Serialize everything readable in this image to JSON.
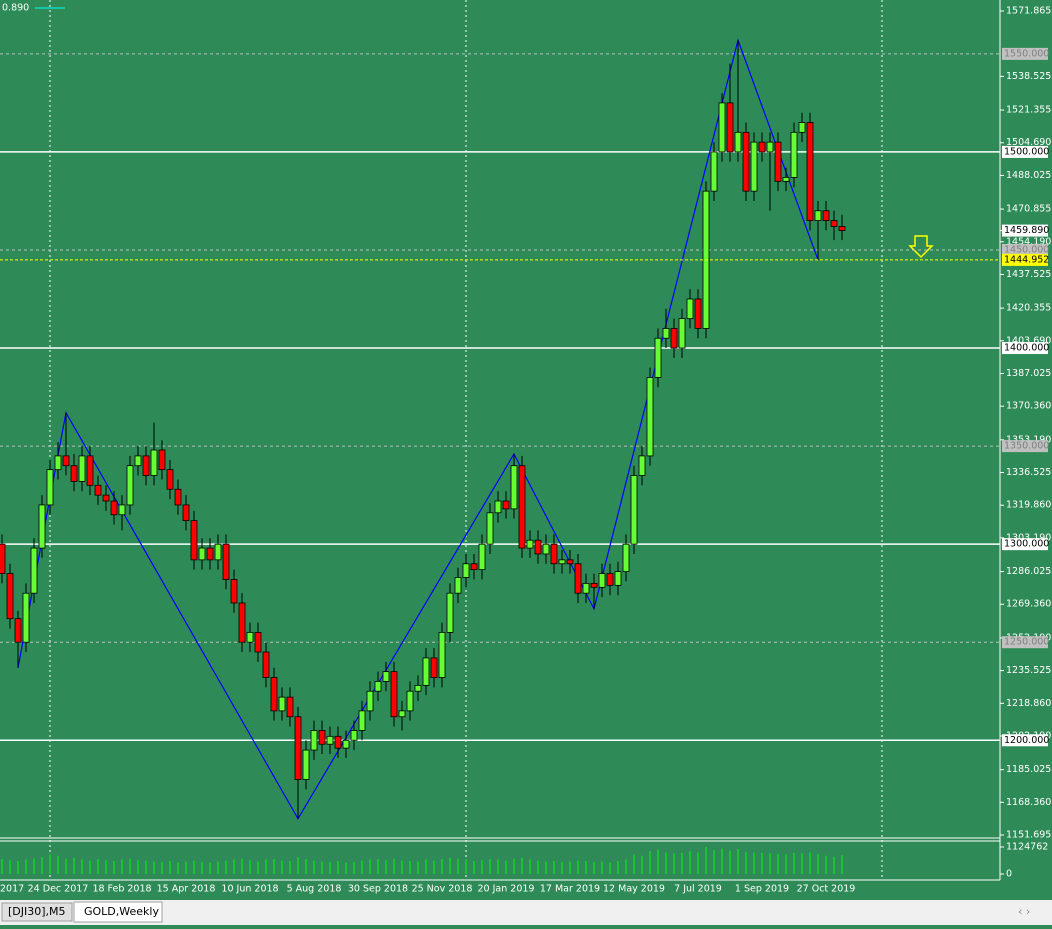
{
  "chart_data": {
    "type": "candlestick",
    "categories": [
      "2017",
      null,
      null,
      null,
      null,
      null,
      null,
      "24 Dec 2017",
      null,
      null,
      null,
      null,
      null,
      null,
      null,
      "18 Feb 2018",
      null,
      null,
      null,
      null,
      null,
      null,
      null,
      "15 Apr 2018",
      null,
      null,
      null,
      null,
      null,
      null,
      null,
      "10 Jun 2018",
      null,
      null,
      null,
      null,
      null,
      null,
      null,
      "5 Aug 2018",
      null,
      null,
      null,
      null,
      null,
      null,
      null,
      "30 Sep 2018",
      null,
      null,
      null,
      null,
      null,
      null,
      null,
      "25 Nov 2018",
      null,
      null,
      null,
      null,
      null,
      null,
      null,
      "20 Jan 2019",
      null,
      null,
      null,
      null,
      null,
      null,
      null,
      "17 Mar 2019",
      null,
      null,
      null,
      null,
      null,
      null,
      null,
      "12 May 2019",
      null,
      null,
      null,
      null,
      null,
      null,
      null,
      "7 Jul 2019",
      null,
      null,
      null,
      null,
      null,
      null,
      null,
      "1 Sep 2019",
      null,
      null,
      null,
      null,
      null,
      null,
      null,
      "27 Oct 2019",
      null,
      null
    ],
    "open": [
      1300,
      1285,
      1262,
      1250,
      1275,
      1298,
      1320,
      1338,
      1345,
      1340,
      1332,
      1345,
      1330,
      1325,
      1322,
      1315,
      1320,
      1340,
      1345,
      1335,
      1348,
      1338,
      1328,
      1320,
      1312,
      1292,
      1298,
      1292,
      1300,
      1282,
      1270,
      1250,
      1255,
      1245,
      1232,
      1215,
      1222,
      1212,
      1180,
      1195,
      1205,
      1198,
      1202,
      1196,
      1200,
      1205,
      1215,
      1225,
      1230,
      1235,
      1212,
      1215,
      1225,
      1228,
      1242,
      1232,
      1255,
      1275,
      1283,
      1290,
      1287,
      1300,
      1316,
      1322,
      1318,
      1340,
      1298,
      1302,
      1295,
      1300,
      1290,
      1292,
      1290,
      1275,
      1280,
      1278,
      1285,
      1279,
      1286,
      1300,
      1335,
      1345,
      1385,
      1405,
      1410,
      1400,
      1415,
      1425,
      1410,
      1480,
      1500,
      1525,
      1500,
      1510,
      1480,
      1505,
      1500,
      1505,
      1485,
      1487,
      1510,
      1515,
      1465,
      1470,
      1465,
      1462
    ],
    "high": [
      1305,
      1290,
      1266,
      1280,
      1303,
      1325,
      1343,
      1352,
      1367,
      1346,
      1350,
      1350,
      1335,
      1330,
      1327,
      1325,
      1345,
      1350,
      1350,
      1362,
      1353,
      1343,
      1333,
      1325,
      1317,
      1303,
      1303,
      1305,
      1305,
      1287,
      1275,
      1260,
      1260,
      1250,
      1237,
      1227,
      1227,
      1217,
      1200,
      1210,
      1210,
      1207,
      1207,
      1205,
      1210,
      1220,
      1230,
      1235,
      1240,
      1240,
      1220,
      1230,
      1233,
      1247,
      1247,
      1260,
      1280,
      1288,
      1295,
      1295,
      1305,
      1321,
      1327,
      1327,
      1346,
      1345,
      1307,
      1307,
      1305,
      1305,
      1297,
      1297,
      1295,
      1285,
      1285,
      1290,
      1290,
      1291,
      1305,
      1340,
      1350,
      1390,
      1410,
      1420,
      1415,
      1420,
      1430,
      1430,
      1485,
      1505,
      1530,
      1545,
      1557,
      1515,
      1510,
      1510,
      1510,
      1510,
      1492,
      1515,
      1520,
      1520,
      1475,
      1475,
      1470,
      1468
    ],
    "low": [
      1280,
      1257,
      1237,
      1245,
      1270,
      1293,
      1315,
      1333,
      1335,
      1327,
      1327,
      1325,
      1320,
      1317,
      1310,
      1307,
      1315,
      1335,
      1330,
      1330,
      1333,
      1323,
      1315,
      1307,
      1287,
      1287,
      1287,
      1287,
      1277,
      1265,
      1245,
      1245,
      1240,
      1227,
      1210,
      1210,
      1207,
      1160,
      1175,
      1190,
      1193,
      1193,
      1191,
      1191,
      1195,
      1200,
      1210,
      1220,
      1225,
      1207,
      1205,
      1210,
      1220,
      1223,
      1227,
      1227,
      1250,
      1270,
      1278,
      1282,
      1282,
      1295,
      1311,
      1313,
      1313,
      1293,
      1293,
      1290,
      1290,
      1285,
      1285,
      1285,
      1270,
      1270,
      1267,
      1273,
      1274,
      1274,
      1281,
      1295,
      1330,
      1340,
      1380,
      1400,
      1395,
      1395,
      1410,
      1405,
      1405,
      1475,
      1495,
      1495,
      1495,
      1475,
      1475,
      1495,
      1470,
      1480,
      1480,
      1482,
      1505,
      1460,
      1445,
      1460,
      1455,
      1455
    ],
    "close": [
      1285,
      1262,
      1250,
      1275,
      1298,
      1320,
      1338,
      1345,
      1340,
      1332,
      1345,
      1330,
      1325,
      1322,
      1315,
      1320,
      1340,
      1345,
      1335,
      1348,
      1338,
      1328,
      1320,
      1312,
      1292,
      1298,
      1292,
      1300,
      1282,
      1270,
      1250,
      1255,
      1245,
      1232,
      1215,
      1222,
      1212,
      1180,
      1195,
      1205,
      1198,
      1202,
      1196,
      1200,
      1205,
      1215,
      1225,
      1230,
      1235,
      1212,
      1215,
      1225,
      1228,
      1242,
      1232,
      1255,
      1275,
      1283,
      1290,
      1287,
      1300,
      1316,
      1322,
      1318,
      1340,
      1298,
      1302,
      1295,
      1300,
      1290,
      1292,
      1290,
      1275,
      1280,
      1278,
      1285,
      1279,
      1286,
      1300,
      1335,
      1345,
      1385,
      1405,
      1410,
      1400,
      1415,
      1425,
      1410,
      1480,
      1500,
      1525,
      1500,
      1510,
      1480,
      1505,
      1500,
      1505,
      1485,
      1487,
      1510,
      1515,
      1465,
      1470,
      1465,
      1462,
      1459.89
    ],
    "up_color": "#66ff33",
    "down_color": "#ff0000",
    "outline_color": "#000000",
    "ylim": [
      1151.695,
      1571.865
    ],
    "yticks": [
      {
        "value": 1571.865,
        "label": "1571.865"
      },
      {
        "value": 1538.525,
        "label": "1538.525"
      },
      {
        "value": 1521.355,
        "label": "1521.355"
      },
      {
        "value": 1504.69,
        "label": "1504.690"
      },
      {
        "value": 1488.025,
        "label": "1488.025"
      },
      {
        "value": 1470.855,
        "label": "1470.855"
      },
      {
        "value": 1454.19,
        "label": "1454.190"
      },
      {
        "value": 1437.525,
        "label": "1437.525"
      },
      {
        "value": 1420.355,
        "label": "1420.355"
      },
      {
        "value": 1403.69,
        "label": "1403.690"
      },
      {
        "value": 1387.025,
        "label": "1387.025"
      },
      {
        "value": 1370.36,
        "label": "1370.360"
      },
      {
        "value": 1353.19,
        "label": "1353.190"
      },
      {
        "value": 1336.525,
        "label": "1336.525"
      },
      {
        "value": 1319.86,
        "label": "1319.860"
      },
      {
        "value": 1303.19,
        "label": "1303.190"
      },
      {
        "value": 1286.025,
        "label": "1286.025"
      },
      {
        "value": 1269.36,
        "label": "1269.360"
      },
      {
        "value": 1252.19,
        "label": "1252.190"
      },
      {
        "value": 1235.525,
        "label": "1235.525"
      },
      {
        "value": 1218.86,
        "label": "1218.860"
      },
      {
        "value": 1202.19,
        "label": "1202.190"
      },
      {
        "value": 1185.025,
        "label": "1185.025"
      },
      {
        "value": 1168.36,
        "label": "1168.360"
      },
      {
        "value": 1151.695,
        "label": "1151.695"
      }
    ],
    "levels": [
      {
        "value": 1550,
        "label": "1550.000",
        "style": "dashed"
      },
      {
        "value": 1500,
        "label": "1500.000",
        "style": "solid"
      },
      {
        "value": 1450,
        "label": "1450.000",
        "style": "dashed"
      },
      {
        "value": 1400,
        "label": "1400.000",
        "style": "solid"
      },
      {
        "value": 1350,
        "label": "1350.000",
        "style": "dashed"
      },
      {
        "value": 1300,
        "label": "1300.000",
        "style": "solid"
      },
      {
        "value": 1250,
        "label": "1250.000",
        "style": "dashed"
      },
      {
        "value": 1200,
        "label": "1200.000",
        "style": "solid"
      }
    ],
    "price_labels": [
      {
        "value": 1459.89,
        "label": "1459.890",
        "color": "#ffffff"
      },
      {
        "value": 1444.952,
        "label": "1444.952",
        "color": "#ffff00"
      }
    ],
    "zigzag": {
      "color": "#0000ff",
      "x": [
        2,
        8,
        37,
        64,
        74,
        92,
        102
      ],
      "y": [
        1237,
        1367,
        1160,
        1346,
        1267,
        1557,
        1445
      ]
    },
    "volume": {
      "color": "#00ff00",
      "lim": [
        0,
        1124762
      ],
      "ticks": [
        1124762,
        0
      ],
      "values": [
        620000,
        580000,
        540000,
        600000,
        650000,
        700000,
        820000,
        760000,
        640000,
        680000,
        600000,
        560000,
        620000,
        580000,
        540000,
        600000,
        640000,
        580000,
        560000,
        520000,
        500000,
        540000,
        480000,
        520000,
        560000,
        500000,
        480000,
        520000,
        560000,
        600000,
        640000,
        580000,
        520000,
        600000,
        620000,
        560000,
        540000,
        700000,
        620000,
        560000,
        520000,
        500000,
        540000,
        480000,
        500000,
        560000,
        600000,
        620000,
        580000,
        640000,
        560000,
        540000,
        520000,
        600000,
        560000,
        620000,
        680000,
        640000,
        600000,
        540000,
        580000,
        620000,
        600000,
        560000,
        640000,
        680000,
        600000,
        560000,
        520000,
        540000,
        500000,
        520000,
        560000,
        540000,
        500000,
        520000,
        480000,
        540000,
        600000,
        820000,
        760000,
        960000,
        1020000,
        900000,
        860000,
        880000,
        940000,
        900000,
        1124762,
        1000000,
        1060000,
        980000,
        1040000,
        920000,
        900000,
        880000,
        860000,
        840000,
        820000,
        880000,
        860000,
        900000,
        840000,
        760000,
        720000,
        780000
      ]
    }
  },
  "ui": {
    "corner_text": "0.890",
    "tabs": [
      "[DJI30],M5",
      "GOLD,Weekly"
    ]
  }
}
